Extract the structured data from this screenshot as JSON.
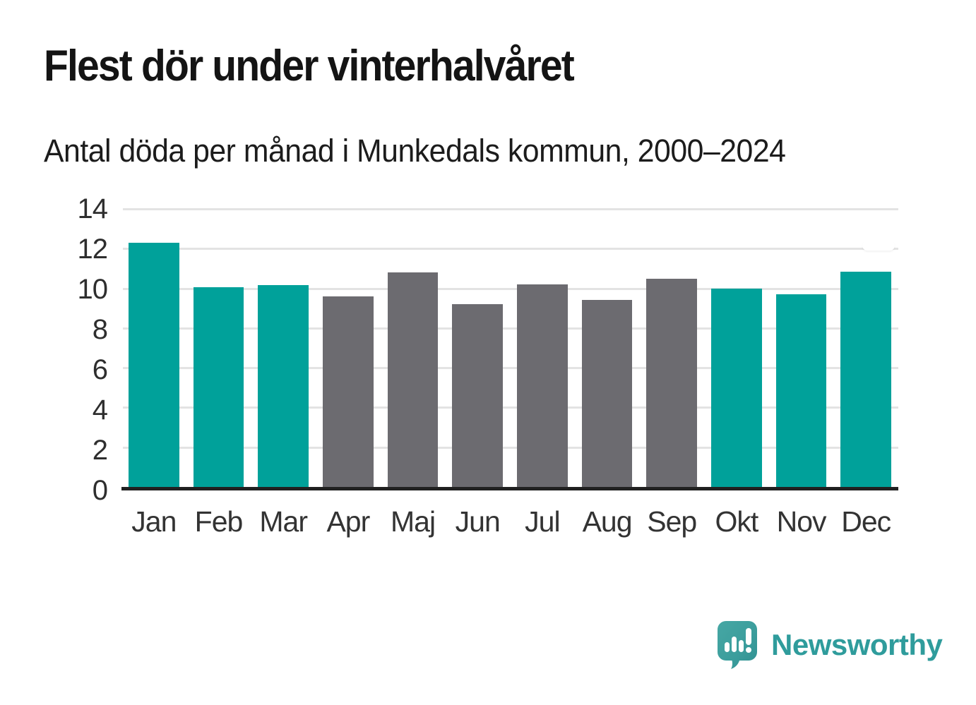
{
  "header": {
    "title": "Flest dör under vinterhalvåret",
    "subtitle": "Antal döda per månad i Munkedals kommun, 2000–2024"
  },
  "chart_data": {
    "type": "bar",
    "title": "Flest dör under vinterhalvåret",
    "subtitle": "Antal döda per månad i Munkedals kommun, 2000–2024",
    "categories": [
      "Jan",
      "Feb",
      "Mar",
      "Apr",
      "Maj",
      "Jun",
      "Jul",
      "Aug",
      "Sep",
      "Okt",
      "Nov",
      "Dec"
    ],
    "values": [
      12.3,
      10.05,
      10.15,
      9.6,
      10.8,
      9.2,
      10.2,
      9.4,
      10.5,
      10.0,
      9.7,
      10.85
    ],
    "bar_colors": [
      "#00a19a",
      "#00a19a",
      "#00a19a",
      "#6c6b70",
      "#6c6b70",
      "#6c6b70",
      "#6c6b70",
      "#6c6b70",
      "#6c6b70",
      "#00a19a",
      "#00a19a",
      "#00a19a"
    ],
    "xlabel": "",
    "ylabel": "",
    "ylim": [
      0,
      14
    ],
    "yticks": [
      0,
      2,
      4,
      6,
      8,
      10,
      12,
      14
    ],
    "grid": true,
    "legend_position": "none"
  },
  "colors": {
    "winter_bar": "#00a19a",
    "summer_bar": "#6c6b70",
    "gridline": "#e3e3e3",
    "axis_line": "#212121",
    "brand_teal": "#2f9c9c"
  },
  "footer": {
    "brand": "Newsworthy"
  }
}
